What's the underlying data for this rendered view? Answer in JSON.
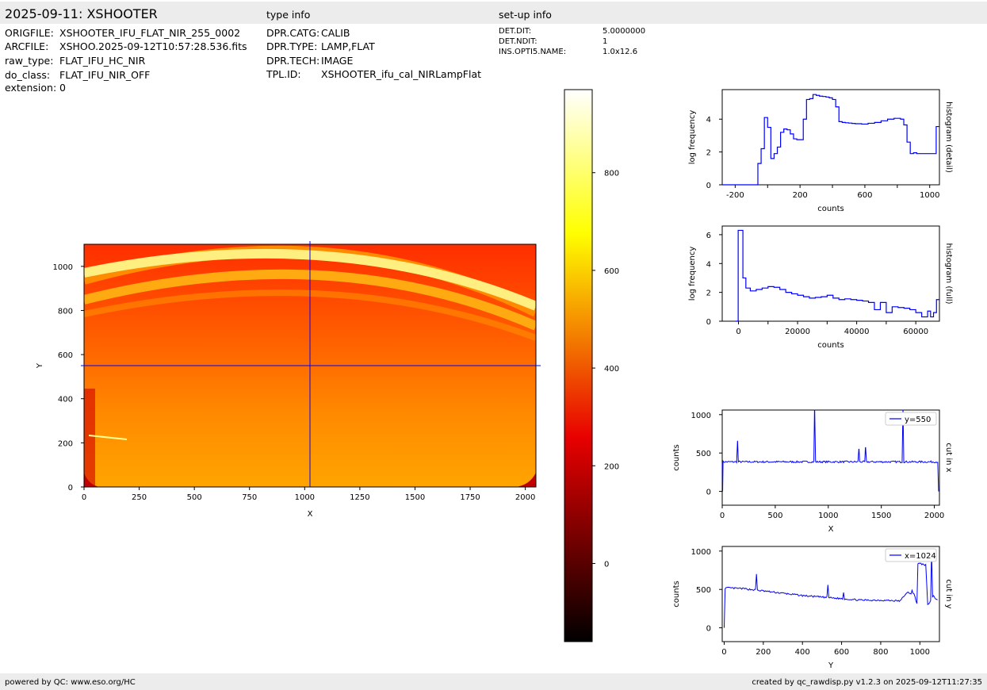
{
  "header": {
    "title": "2025-09-11: XSHOOTER",
    "type_info_heading": "type info",
    "setup_info_heading": "set-up info"
  },
  "file_info": [
    {
      "key": "ORIGFILE:",
      "value": "XSHOOTER_IFU_FLAT_NIR_255_0002"
    },
    {
      "key": "ARCFILE:",
      "value": "XSHOO.2025-09-12T10:57:28.536.fits"
    },
    {
      "key": "raw_type:",
      "value": "FLAT_IFU_HC_NIR"
    },
    {
      "key": "do_class:",
      "value": "FLAT_IFU_NIR_OFF"
    },
    {
      "key": "extension:",
      "value": "0"
    }
  ],
  "type_info": [
    {
      "key": "DPR.CATG:",
      "value": "CALIB"
    },
    {
      "key": "DPR.TYPE:",
      "value": "LAMP,FLAT"
    },
    {
      "key": "DPR.TECH:",
      "value": "IMAGE"
    },
    {
      "key": "TPL.ID:",
      "value": "XSHOOTER_ifu_cal_NIRLampFlat"
    }
  ],
  "setup_info": [
    {
      "key": "DET.DIT:",
      "value": "5.0000000"
    },
    {
      "key": "DET.NDIT:",
      "value": "1"
    },
    {
      "key": "INS.OPTI5.NAME:",
      "value": "1.0x12.6"
    }
  ],
  "footer": {
    "left": "powered by QC: www.eso.org/HC",
    "right": "created by qc_rawdisp.py v1.2.3 on 2025-09-12T11:27:35"
  },
  "colors": {
    "band": "#ececec",
    "line": "#0000ff",
    "crosshair": "#0000ff"
  },
  "chart_data": [
    {
      "type": "heatmap",
      "description_of_image": "raw detector image, hot colormap",
      "xlabel": "X",
      "ylabel": "Y",
      "xlim": [
        0,
        2048
      ],
      "ylim": [
        0,
        1100
      ],
      "xticks": [
        0,
        250,
        500,
        750,
        1000,
        1250,
        1500,
        1750,
        2000
      ],
      "yticks": [
        0,
        200,
        400,
        600,
        800,
        1000
      ],
      "crosshair": {
        "x": 1024,
        "y": 550
      },
      "colorbar": {
        "ticks": [
          0,
          200,
          400,
          600,
          800
        ],
        "range": [
          -160,
          970
        ]
      }
    },
    {
      "type": "line",
      "ylabel": "log frequency",
      "xlabel": "counts",
      "side_label": "histogram (detail)",
      "xlim": [
        -280,
        1060
      ],
      "ylim": [
        0,
        5.8
      ],
      "xticks": [
        -200,
        200,
        600,
        1000
      ],
      "xticks_minor": [
        0,
        400,
        800
      ],
      "yticks": [
        0,
        2,
        4
      ],
      "x": [
        -280,
        -80,
        -60,
        -40,
        -20,
        0,
        20,
        40,
        60,
        80,
        100,
        120,
        140,
        160,
        180,
        200,
        220,
        240,
        260,
        280,
        300,
        320,
        340,
        360,
        380,
        400,
        420,
        440,
        460,
        480,
        500,
        520,
        540,
        580,
        620,
        660,
        700,
        740,
        780,
        820,
        840,
        860,
        880,
        900,
        920,
        940,
        960,
        980,
        1000,
        1020,
        1040,
        1060
      ],
      "y": [
        0,
        0,
        1.3,
        2.2,
        4.1,
        3.5,
        1.6,
        1.9,
        2.3,
        3.2,
        3.4,
        3.35,
        3.1,
        2.8,
        2.75,
        2.75,
        4.0,
        5.2,
        5.25,
        5.5,
        5.45,
        5.4,
        5.38,
        5.35,
        5.3,
        5.2,
        4.75,
        3.85,
        3.8,
        3.78,
        3.76,
        3.74,
        3.72,
        3.7,
        3.75,
        3.8,
        3.9,
        4.0,
        4.05,
        4.0,
        3.65,
        2.6,
        1.9,
        1.95,
        1.9,
        1.9,
        1.9,
        1.9,
        1.9,
        1.9,
        3.55,
        3.55
      ]
    },
    {
      "type": "line",
      "ylabel": "log frequency",
      "xlabel": "counts",
      "side_label": "histogram (full)",
      "xlim": [
        -5500,
        68000
      ],
      "ylim": [
        0,
        6.6
      ],
      "xticks": [
        0,
        20000,
        40000,
        60000
      ],
      "xticks_minor": [
        10000,
        30000,
        50000
      ],
      "yticks": [
        0,
        2,
        4,
        6
      ],
      "x": [
        -1000,
        -100,
        600,
        1500,
        2500,
        4000,
        6000,
        8000,
        10000,
        12000,
        14000,
        16000,
        18000,
        20000,
        22000,
        24000,
        26000,
        28000,
        30000,
        32000,
        34000,
        36000,
        38000,
        40000,
        42000,
        44000,
        46000,
        48000,
        50000,
        52000,
        54000,
        56000,
        58000,
        60000,
        62000,
        64000,
        65000,
        66000,
        67000,
        68000
      ],
      "y": [
        0,
        6.3,
        6.3,
        3.0,
        2.3,
        2.1,
        2.2,
        2.3,
        2.4,
        2.35,
        2.2,
        2.0,
        1.9,
        1.8,
        1.7,
        1.6,
        1.65,
        1.7,
        1.8,
        1.6,
        1.5,
        1.55,
        1.5,
        1.45,
        1.4,
        1.3,
        0.8,
        1.3,
        0.6,
        1.0,
        0.95,
        0.9,
        0.8,
        0.6,
        0.3,
        0.7,
        0.3,
        0.6,
        1.5,
        1.5
      ]
    },
    {
      "type": "line",
      "ylabel": "counts",
      "xlabel": "X",
      "side_label": "cut in x",
      "xlim": [
        0,
        2048
      ],
      "ylim": [
        -180,
        1060
      ],
      "xticks": [
        0,
        500,
        1000,
        1500,
        2000
      ],
      "yticks": [
        0,
        500,
        1000
      ],
      "series": [
        {
          "name": "y=550",
          "baseline": 385,
          "x_end": 2045,
          "spikes": [
            [
              4,
              0
            ],
            [
              145,
              655
            ],
            [
              870,
              1060
            ],
            [
              1290,
              550
            ],
            [
              1350,
              570
            ],
            [
              1705,
              1060
            ],
            [
              2040,
              0
            ]
          ]
        }
      ]
    },
    {
      "type": "line",
      "ylabel": "counts",
      "xlabel": "Y",
      "side_label": "cut in y",
      "xlim": [
        -10,
        1100
      ],
      "ylim": [
        -180,
        1060
      ],
      "xticks": [
        0,
        200,
        400,
        600,
        800,
        1000
      ],
      "yticks": [
        0,
        500,
        1000
      ],
      "series": [
        {
          "name": "x=1024",
          "points": [
            [
              0,
              0
            ],
            [
              5,
              520
            ],
            [
              100,
              510
            ],
            [
              200,
              480
            ],
            [
              300,
              450
            ],
            [
              400,
              420
            ],
            [
              500,
              400
            ],
            [
              600,
              380
            ],
            [
              700,
              360
            ],
            [
              800,
              360
            ],
            [
              900,
              350
            ],
            [
              920,
              420
            ],
            [
              940,
              460
            ],
            [
              970,
              440
            ],
            [
              985,
              320
            ],
            [
              990,
              840
            ],
            [
              1030,
              820
            ],
            [
              1040,
              300
            ],
            [
              1050,
              330
            ],
            [
              1060,
              380
            ],
            [
              1070,
              420
            ],
            [
              1080,
              380
            ],
            [
              1090,
              370
            ]
          ],
          "spikes": [
            [
              165,
              700
            ],
            [
              530,
              560
            ],
            [
              610,
              460
            ],
            [
              960,
              490
            ],
            [
              1060,
              1000
            ]
          ]
        }
      ]
    }
  ]
}
